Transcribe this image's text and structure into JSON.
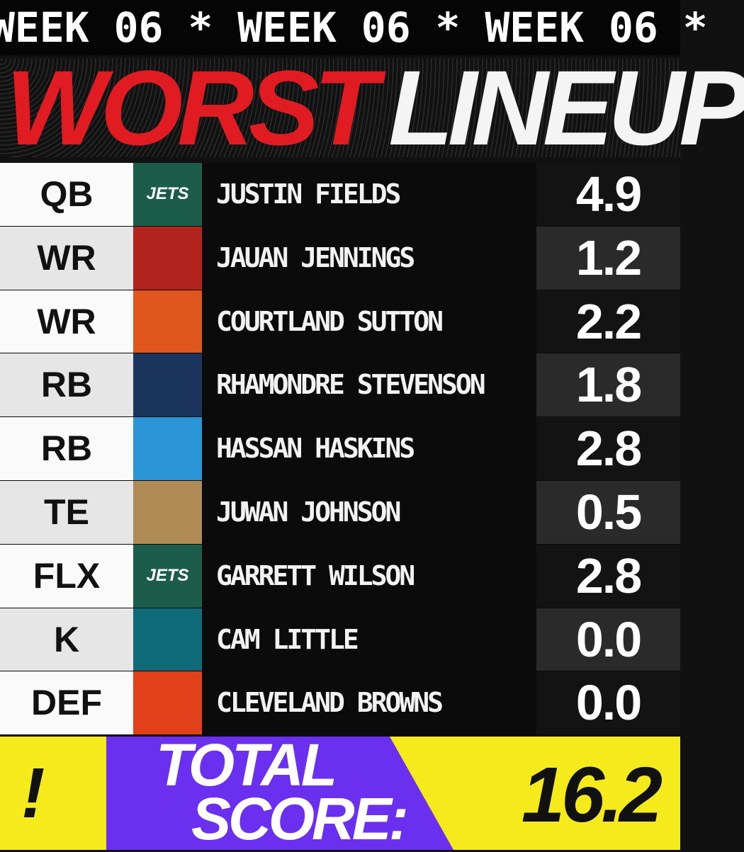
{
  "banner": "WEEK 06 * WEEK 06 * WEEK 06 *",
  "title": {
    "first": "WORST",
    "second": "LINEUP"
  },
  "rows": [
    {
      "position": "QB",
      "logo_text": "JETS",
      "color": "#1b5c4a",
      "player": "JUSTIN FIELDS",
      "score": "4.9"
    },
    {
      "position": "WR",
      "color": "#b3241e",
      "player": "JAUAN JENNINGS",
      "score": "1.2"
    },
    {
      "position": "WR",
      "color": "#e0561c",
      "player": "COURTLAND SUTTON",
      "score": "2.2"
    },
    {
      "position": "RB",
      "color": "#1c355e",
      "player": "RHAMONDRE STEVENSON",
      "score": "1.8"
    },
    {
      "position": "RB",
      "color": "#2a96d8",
      "player": "HASSAN HASKINS",
      "score": "2.8"
    },
    {
      "position": "TE",
      "color": "#b08a55",
      "player": "JUWAN JOHNSON",
      "score": "0.5"
    },
    {
      "position": "FLX",
      "logo_text": "JETS",
      "color": "#1b5c4a",
      "player": "GARRETT WILSON",
      "score": "2.8"
    },
    {
      "position": "K",
      "color": "#0f6b78",
      "player": "CAM LITTLE",
      "score": "0.0"
    },
    {
      "position": "DEF",
      "color": "#e2401a",
      "player": "CLEVELAND BROWNS",
      "score": "0.0"
    }
  ],
  "total": {
    "label_line1": "TOTAL",
    "label_line2": "SCORE:",
    "value": "16.2",
    "brand": "!"
  }
}
